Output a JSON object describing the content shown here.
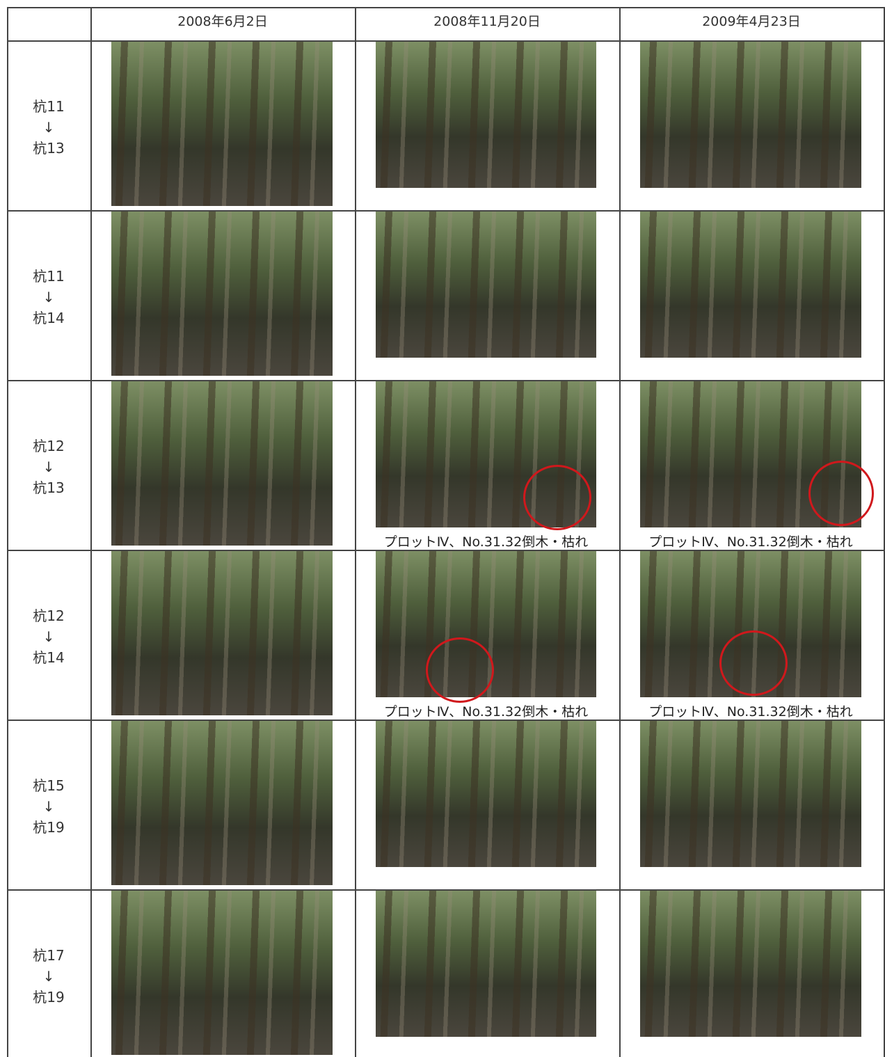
{
  "header": {
    "columns": [
      "2008年6月2日",
      "2008年11月20日",
      "2009年4月23日"
    ]
  },
  "rows": [
    {
      "label": [
        "杭11",
        "↓",
        "杭13"
      ]
    },
    {
      "label": [
        "杭11",
        "↓",
        "杭14"
      ]
    },
    {
      "label": [
        "杭12",
        "↓",
        "杭13"
      ],
      "caption": "プロットⅣ、No.31.32倒木・枯れ"
    },
    {
      "label": [
        "杭12",
        "↓",
        "杭14"
      ],
      "caption": "プロットⅣ、No.31.32倒木・枯れ"
    },
    {
      "label": [
        "杭15",
        "↓",
        "杭19"
      ]
    },
    {
      "label": [
        "杭17",
        "↓",
        "杭19"
      ]
    }
  ]
}
